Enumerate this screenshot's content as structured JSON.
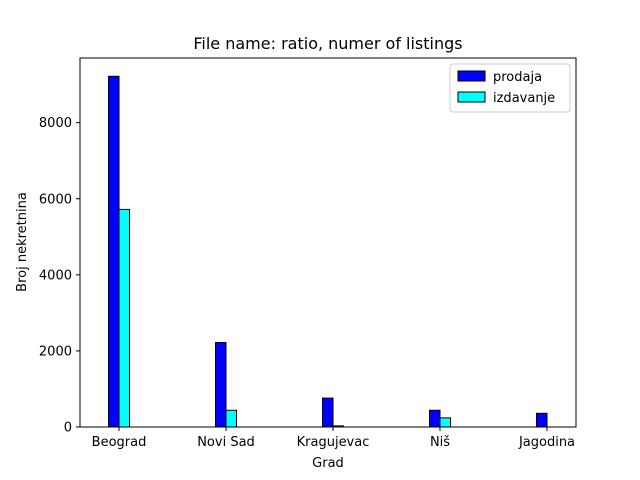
{
  "chart_data": {
    "type": "bar",
    "title": "File name: ratio, numer of listings",
    "xlabel": "Grad",
    "ylabel": "Broj nekretnina",
    "categories": [
      "Beograd",
      "Novi Sad",
      "Kragujevac",
      "Niš",
      "Jagodina"
    ],
    "series": [
      {
        "name": "prodaja",
        "color": "#0000ff",
        "values": [
          9220,
          2220,
          760,
          440,
          360
        ]
      },
      {
        "name": "izdavanje",
        "color": "#00ffff",
        "values": [
          5720,
          440,
          30,
          240,
          0
        ]
      }
    ],
    "yticks": [
      0,
      2000,
      4000,
      6000,
      8000
    ],
    "ylim": [
      0,
      9700
    ],
    "grid": false,
    "legend_position": "top-right"
  }
}
